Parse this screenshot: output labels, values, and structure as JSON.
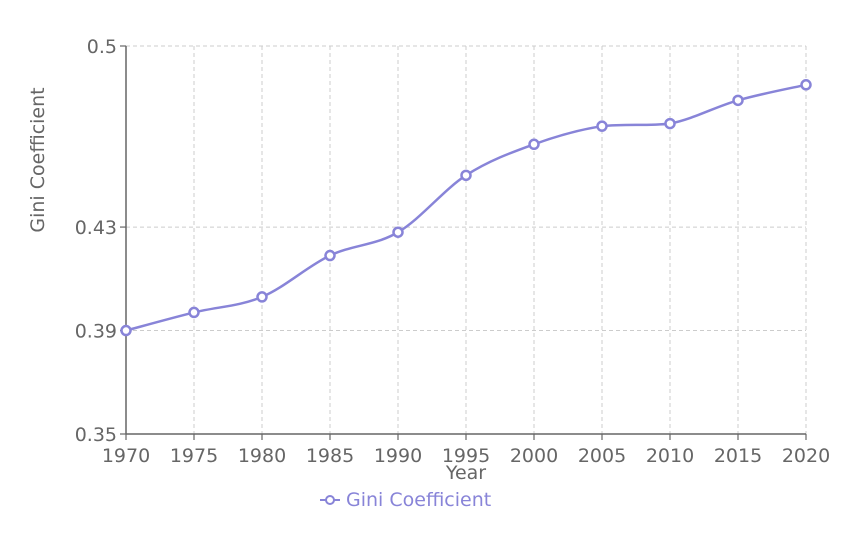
{
  "chart_data": {
    "type": "line",
    "title": "",
    "xlabel": "Year",
    "ylabel": "Gini Coefficient",
    "x": [
      1970,
      1975,
      1980,
      1985,
      1990,
      1995,
      2000,
      2005,
      2010,
      2015,
      2020
    ],
    "x_tick_labels": [
      "1970",
      "1975",
      "1980",
      "1985",
      "1990",
      "1995",
      "2000",
      "2005",
      "2010",
      "2015",
      "2020"
    ],
    "y_ticks": [
      0.35,
      0.39,
      0.43,
      0.5
    ],
    "y_tick_labels": [
      "0.35",
      "0.39",
      "0.43",
      "0.5"
    ],
    "ylim": [
      0.35,
      0.5
    ],
    "xlim": [
      1970,
      2020
    ],
    "grid": true,
    "legend_position": "bottom-center",
    "series": [
      {
        "name": "Gini Coefficient",
        "color": "#8884d8",
        "values": [
          0.39,
          0.397,
          0.403,
          0.419,
          0.428,
          0.45,
          0.462,
          0.469,
          0.47,
          0.479,
          0.485
        ]
      }
    ]
  }
}
